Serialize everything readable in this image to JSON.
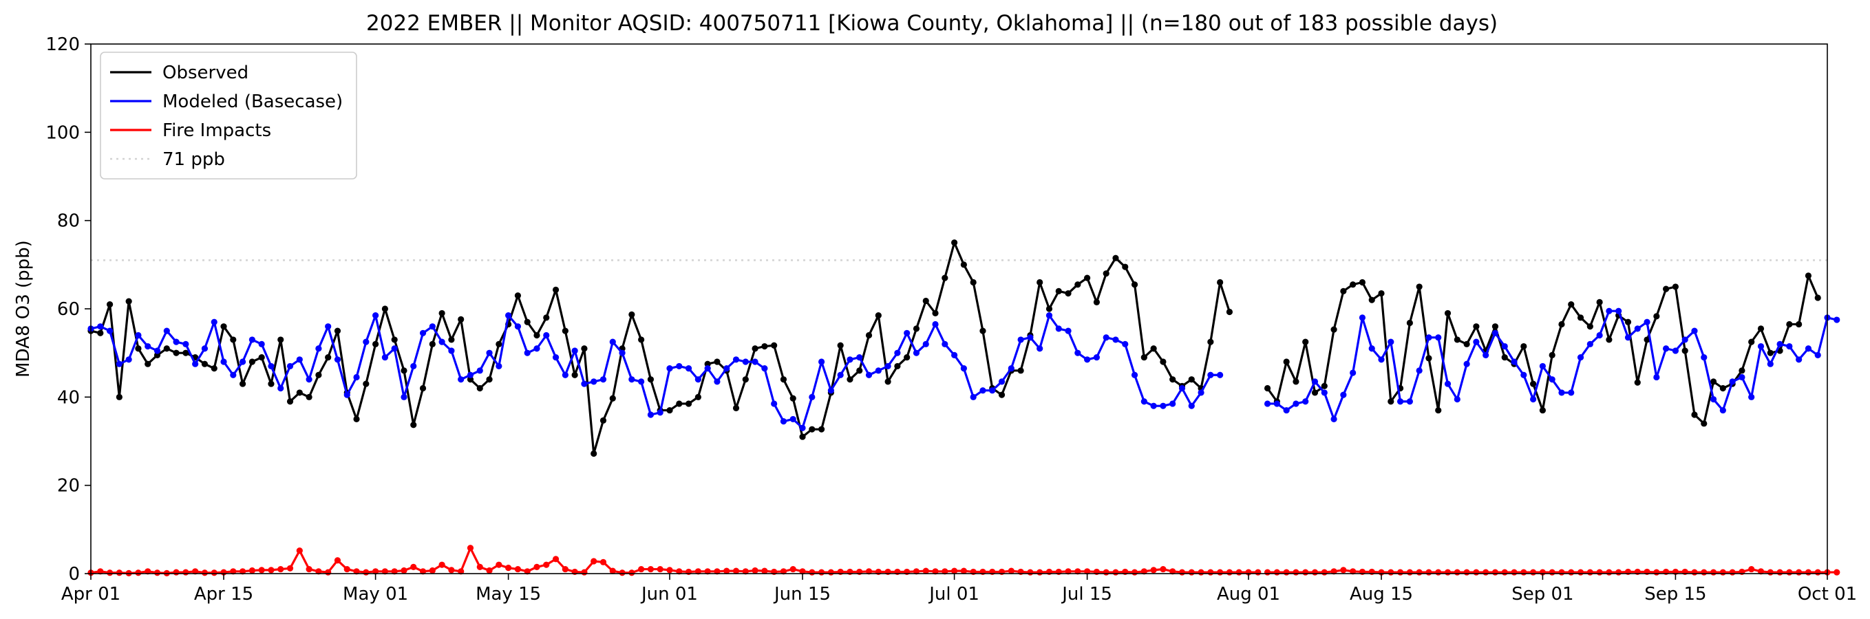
{
  "chart_data": {
    "type": "line",
    "title": "2022 EMBER || Monitor AQSID: 400750711 [Kiowa County, Oklahoma] || (n=180 out of 183 possible days)",
    "xlabel": "",
    "ylabel": "MDA8 O3 (ppb)",
    "x_start": "2022-04-01",
    "x_end": "2022-10-01",
    "ylim": [
      0,
      120
    ],
    "y_ticks": [
      0,
      20,
      40,
      60,
      80,
      100,
      120
    ],
    "x_ticks": [
      {
        "date": "2022-04-01",
        "label": "Apr 01"
      },
      {
        "date": "2022-04-15",
        "label": "Apr 15"
      },
      {
        "date": "2022-05-01",
        "label": "May 01"
      },
      {
        "date": "2022-05-15",
        "label": "May 15"
      },
      {
        "date": "2022-06-01",
        "label": "Jun 01"
      },
      {
        "date": "2022-06-15",
        "label": "Jun 15"
      },
      {
        "date": "2022-07-01",
        "label": "Jul 01"
      },
      {
        "date": "2022-07-15",
        "label": "Jul 15"
      },
      {
        "date": "2022-08-01",
        "label": "Aug 01"
      },
      {
        "date": "2022-08-15",
        "label": "Aug 15"
      },
      {
        "date": "2022-09-01",
        "label": "Sep 01"
      },
      {
        "date": "2022-09-15",
        "label": "Sep 15"
      },
      {
        "date": "2022-10-01",
        "label": "Oct 01"
      }
    ],
    "grid": false,
    "legend": "top-left",
    "threshold": {
      "name": "71 ppb",
      "value": 71,
      "color": "#d3d3d3"
    },
    "series": [
      {
        "name": "Observed",
        "color": "#000000",
        "segments": [
          {
            "start": "2022-04-01",
            "values": [
              55,
              54.5,
              61,
              40,
              61.7,
              51,
              47.5,
              49.5,
              51,
              50,
              50,
              49,
              47.5,
              46.5,
              56,
              53,
              43,
              48,
              49,
              43,
              53,
              39,
              41,
              40,
              45,
              49,
              55,
              41,
              35,
              43,
              52,
              60,
              53,
              46,
              33.7,
              42,
              52,
              59,
              53,
              57.6,
              44,
              42,
              44,
              52,
              56.5,
              63,
              57,
              54,
              58,
              64.3,
              55,
              45,
              51,
              27.2,
              34.7,
              39.7,
              51,
              58.7,
              53,
              44,
              37,
              37,
              38.5,
              38.5,
              40,
              47.5,
              48,
              46,
              37.5,
              44,
              51,
              51.5,
              51.7,
              44,
              39.7,
              31,
              32.7,
              32.7,
              41,
              51.7,
              44,
              46,
              54,
              58.5,
              43.5,
              47,
              49,
              55.5,
              61.8,
              59,
              67,
              75,
              70,
              66,
              55,
              42,
              40.5,
              46,
              46,
              54,
              66,
              60,
              64,
              63.5,
              65.5,
              67,
              61.5,
              68,
              71.5,
              69.5,
              65.5,
              49,
              51,
              48,
              44,
              42.5,
              44,
              42,
              52.5,
              66,
              59.3
            ]
          },
          {
            "start": "2022-08-03",
            "values": [
              42,
              39,
              48,
              43.5,
              52.5,
              41,
              42.5,
              55.3,
              64,
              65.5,
              66,
              62,
              63.5,
              39,
              42,
              56.8,
              65,
              48.8,
              37,
              59,
              53,
              52,
              56,
              50.5,
              56,
              49,
              47.5,
              51.5,
              43,
              37,
              49.5,
              56.5,
              61,
              58,
              56,
              61.5,
              53,
              58.5,
              57,
              43.3,
              53,
              58.3,
              64.5,
              65,
              50.5,
              36,
              34,
              43.5,
              42,
              43,
              46,
              52.5,
              55.5,
              50,
              50.5,
              56.5,
              56.5,
              67.5,
              62.5
            ]
          }
        ]
      },
      {
        "name": "Modeled (Basecase)",
        "color": "#0000ff",
        "segments": [
          {
            "start": "2022-04-01",
            "values": [
              55.5,
              56,
              55,
              47.5,
              48.5,
              54,
              51.5,
              50.5,
              55,
              52.5,
              52,
              47.5,
              51,
              57,
              48,
              45,
              48,
              53,
              52,
              47,
              42,
              47,
              48.5,
              44,
              51,
              56,
              48.5,
              40.5,
              44.5,
              52.5,
              58.5,
              49,
              51,
              40,
              47,
              54.5,
              56,
              52.5,
              50.5,
              44,
              45,
              46,
              50,
              47,
              58.5,
              56,
              50,
              51,
              54,
              49,
              45,
              50.5,
              43,
              43.5,
              44,
              52.5,
              50,
              44,
              43.5,
              36,
              36.5,
              46.5,
              47,
              46.5,
              44,
              46.5,
              43.5,
              46.5,
              48.5,
              48,
              48,
              46.5,
              38.5,
              34.5,
              35,
              33,
              40,
              48,
              41.5,
              45,
              48.5,
              49,
              45,
              46,
              47,
              50,
              54.5,
              50,
              52,
              56.5,
              52,
              49.5,
              46.5,
              40,
              41.5,
              41.5,
              43.5,
              46.5,
              53,
              53.5,
              51,
              58.5,
              55.5,
              55,
              50,
              48.5,
              49,
              53.5,
              53,
              52,
              45,
              39,
              38,
              38,
              38.5,
              42,
              38,
              41,
              45,
              45
            ]
          },
          {
            "start": "2022-08-03",
            "values": [
              38.5,
              38.5,
              37,
              38.5,
              39,
              43.5,
              41,
              35,
              40.5,
              45.5,
              58,
              51,
              48.5,
              52.5,
              39,
              39,
              46,
              53.5,
              53.5,
              43,
              39.5,
              47.5,
              52.5,
              49.5,
              54.5,
              51.5,
              48,
              45,
              39.5,
              47,
              44,
              41,
              41,
              49,
              52,
              54,
              59.5,
              59.5,
              53.5,
              55.5,
              57,
              44.5,
              51,
              50.5,
              53,
              55,
              49,
              39.5,
              37,
              43.5,
              44.5,
              40,
              51.5,
              47.5,
              52,
              51.5,
              48.5,
              51,
              49.5,
              58,
              57.5
            ]
          }
        ]
      },
      {
        "name": "Fire Impacts",
        "color": "#ff0000",
        "segments": [
          {
            "start": "2022-04-01",
            "values": [
              0.2,
              0.5,
              0.2,
              0.2,
              0.1,
              0.2,
              0.5,
              0.2,
              0.1,
              0.3,
              0.3,
              0.5,
              0.2,
              0.2,
              0.3,
              0.5,
              0.5,
              0.7,
              0.8,
              0.8,
              1,
              1.2,
              5.2,
              1,
              0.5,
              0.3,
              3,
              1,
              0.5,
              0.3,
              0.5,
              0.5,
              0.5,
              0.7,
              1.5,
              0.5,
              0.7,
              2,
              0.8,
              0.5,
              5.8,
              1.5,
              0.7,
              2,
              1.3,
              1,
              0.5,
              1.5,
              2,
              3.3,
              1,
              0.4,
              0.3,
              2.8,
              2.6,
              0.6,
              0.2,
              0.2,
              1,
              1,
              1,
              0.8,
              0.5,
              0.4,
              0.5,
              0.5,
              0.5,
              0.6,
              0.6,
              0.5,
              0.7,
              0.6,
              0.4,
              0.5,
              1,
              0.5,
              0.3,
              0.3,
              0.3,
              0.4,
              0.4,
              0.4,
              0.5,
              0.4,
              0.4,
              0.4,
              0.4,
              0.5,
              0.6,
              0.5,
              0.5,
              0.6,
              0.6,
              0.4,
              0.4,
              0.4,
              0.4,
              0.6,
              0.4,
              0.3,
              0.3,
              0.4,
              0.4,
              0.5,
              0.5,
              0.5,
              0.4,
              0.3,
              0.3,
              0.4,
              0.3,
              0.5,
              0.8,
              1,
              0.5,
              0.3,
              0.3,
              0.3,
              0.3,
              0.3,
              0.3,
              0.3,
              0.3,
              0.3
            ]
          },
          {
            "start": "2022-08-03",
            "values": [
              0.3,
              0.3,
              0.3,
              0.3,
              0.3,
              0.3,
              0.3,
              0.5,
              0.8,
              0.5,
              0.4,
              0.4,
              0.3,
              0.3,
              0.3,
              0.3,
              0.3,
              0.3,
              0.3,
              0.3,
              0.3,
              0.3,
              0.3,
              0.3,
              0.3,
              0.3,
              0.3,
              0.3,
              0.3,
              0.3,
              0.3,
              0.3,
              0.3,
              0.3,
              0.3,
              0.3,
              0.3,
              0.3,
              0.4,
              0.4,
              0.4,
              0.3,
              0.4,
              0.4,
              0.4,
              0.3,
              0.3,
              0.3,
              0.3,
              0.3,
              0.4,
              1,
              0.5,
              0.3,
              0.3,
              0.3,
              0.3,
              0.3,
              0.3,
              0.3,
              0.3
            ]
          }
        ]
      }
    ]
  }
}
